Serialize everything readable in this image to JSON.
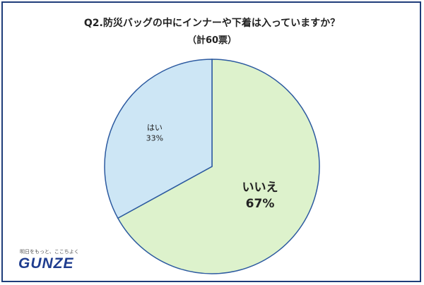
{
  "chart_data": {
    "type": "pie",
    "title": "Q2.防災バッグの中にインナーや下着は入っていますか？",
    "subtitle": "（計60票）",
    "slices": [
      {
        "label": "いいえ",
        "percent_label": "67%",
        "value": 67,
        "color": "#ddf2cc"
      },
      {
        "label": "はい",
        "percent_label": "33%",
        "value": 33,
        "color": "#cde6f5"
      }
    ],
    "start": "12 o'clock",
    "direction": "clockwise"
  },
  "brand": {
    "tagline": "明日をもっと、ここちよく",
    "name": "GUNZE"
  }
}
